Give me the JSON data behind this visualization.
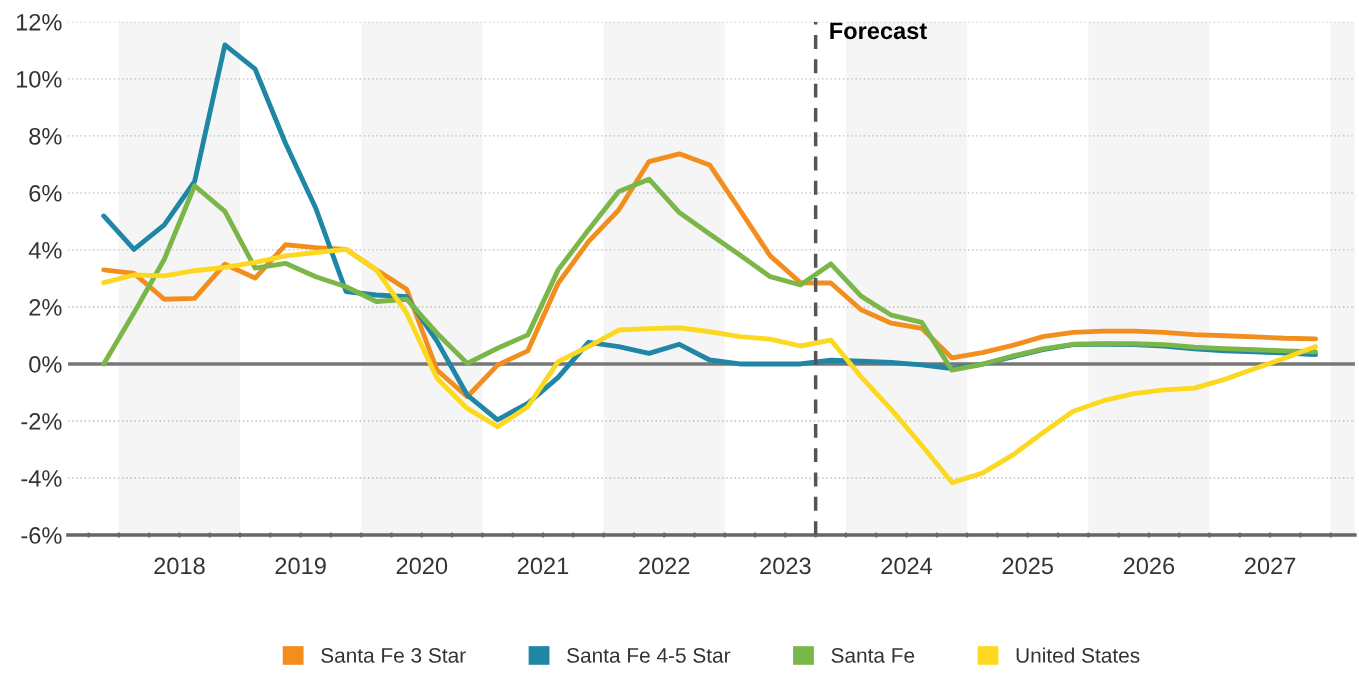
{
  "chart_data": {
    "type": "line",
    "x": [
      2017.875,
      2018.125,
      2018.375,
      2018.625,
      2018.875,
      2019.125,
      2019.375,
      2019.625,
      2019.875,
      2020.125,
      2020.375,
      2020.625,
      2020.875,
      2021.125,
      2021.375,
      2021.625,
      2021.875,
      2022.125,
      2022.375,
      2022.625,
      2022.875,
      2023.125,
      2023.375,
      2023.625,
      2023.875,
      2024.125,
      2024.375,
      2024.625,
      2024.875,
      2025.125,
      2025.375,
      2025.625,
      2025.875,
      2026.125,
      2026.375,
      2026.625,
      2026.875,
      2027.125,
      2027.375,
      2027.625,
      2027.875
    ],
    "series": [
      {
        "name": "Santa Fe 3 Star",
        "color": "#f28e1e",
        "values": [
          3.3,
          3.18,
          2.27,
          2.3,
          3.5,
          3.01,
          4.18,
          4.08,
          4.02,
          3.3,
          2.62,
          -0.21,
          -1.15,
          -0.04,
          0.46,
          2.83,
          4.29,
          5.4,
          7.1,
          7.37,
          6.98,
          5.4,
          3.79,
          2.85,
          2.84,
          1.9,
          1.43,
          1.25,
          0.21,
          0.4,
          0.65,
          0.96,
          1.11,
          1.15,
          1.15,
          1.11,
          1.03,
          0.99,
          0.95,
          0.9,
          0.88
        ]
      },
      {
        "name": "Santa Fe 4-5 Star",
        "color": "#1f86a6",
        "values": [
          5.19,
          4.02,
          4.88,
          6.4,
          11.19,
          10.34,
          7.74,
          5.46,
          2.54,
          2.42,
          2.36,
          0.8,
          -1.09,
          -1.96,
          -1.38,
          -0.47,
          0.76,
          0.61,
          0.37,
          0.69,
          0.14,
          0.0,
          0.0,
          0.0,
          0.13,
          0.1,
          0.05,
          -0.03,
          -0.16,
          -0.01,
          0.25,
          0.5,
          0.68,
          0.69,
          0.68,
          0.63,
          0.53,
          0.46,
          0.43,
          0.38,
          0.33
        ]
      },
      {
        "name": "Santa Fe",
        "color": "#7ab648",
        "values": [
          0.0,
          1.8,
          3.67,
          6.25,
          5.35,
          3.36,
          3.53,
          3.06,
          2.71,
          2.19,
          2.27,
          1.08,
          0.02,
          0.55,
          1.02,
          3.3,
          4.7,
          6.05,
          6.48,
          5.31,
          4.56,
          3.82,
          3.06,
          2.77,
          3.51,
          2.38,
          1.71,
          1.46,
          -0.22,
          -0.01,
          0.28,
          0.53,
          0.69,
          0.71,
          0.71,
          0.68,
          0.59,
          0.54,
          0.5,
          0.46,
          0.43
        ]
      },
      {
        "name": "United States",
        "color": "#fcd920",
        "values": [
          2.85,
          3.12,
          3.09,
          3.27,
          3.39,
          3.56,
          3.79,
          3.91,
          4.02,
          3.3,
          1.78,
          -0.5,
          -1.56,
          -2.2,
          -1.5,
          0.08,
          0.61,
          1.19,
          1.24,
          1.27,
          1.13,
          0.96,
          0.87,
          0.63,
          0.84,
          -0.45,
          -1.6,
          -2.85,
          -4.16,
          -3.83,
          -3.2,
          -2.41,
          -1.66,
          -1.29,
          -1.04,
          -0.91,
          -0.85,
          -0.54,
          -0.16,
          0.21,
          0.61
        ]
      }
    ],
    "xlim": [
      2017.58,
      2028.2
    ],
    "xticks": [
      {
        "value": 2017.75,
        "label": null
      },
      {
        "value": 2018,
        "label": null
      },
      {
        "value": 2018.25,
        "label": null
      },
      {
        "value": 2018.5,
        "label": "2018"
      },
      {
        "value": 2018.75,
        "label": null
      },
      {
        "value": 2019,
        "label": null
      },
      {
        "value": 2019.25,
        "label": null
      },
      {
        "value": 2019.5,
        "label": "2019"
      },
      {
        "value": 2019.75,
        "label": null
      },
      {
        "value": 2020,
        "label": null
      },
      {
        "value": 2020.25,
        "label": null
      },
      {
        "value": 2020.5,
        "label": "2020"
      },
      {
        "value": 2020.75,
        "label": null
      },
      {
        "value": 2021,
        "label": null
      },
      {
        "value": 2021.25,
        "label": null
      },
      {
        "value": 2021.5,
        "label": "2021"
      },
      {
        "value": 2021.75,
        "label": null
      },
      {
        "value": 2022,
        "label": null
      },
      {
        "value": 2022.25,
        "label": null
      },
      {
        "value": 2022.5,
        "label": "2022"
      },
      {
        "value": 2022.75,
        "label": null
      },
      {
        "value": 2023,
        "label": null
      },
      {
        "value": 2023.25,
        "label": null
      },
      {
        "value": 2023.5,
        "label": "2023"
      },
      {
        "value": 2023.75,
        "label": null
      },
      {
        "value": 2024,
        "label": null
      },
      {
        "value": 2024.25,
        "label": null
      },
      {
        "value": 2024.5,
        "label": "2024"
      },
      {
        "value": 2024.75,
        "label": null
      },
      {
        "value": 2025,
        "label": null
      },
      {
        "value": 2025.25,
        "label": null
      },
      {
        "value": 2025.5,
        "label": "2025"
      },
      {
        "value": 2025.75,
        "label": null
      },
      {
        "value": 2026,
        "label": null
      },
      {
        "value": 2026.25,
        "label": null
      },
      {
        "value": 2026.5,
        "label": "2026"
      },
      {
        "value": 2026.75,
        "label": null
      },
      {
        "value": 2027,
        "label": null
      },
      {
        "value": 2027.25,
        "label": null
      },
      {
        "value": 2027.5,
        "label": "2027"
      },
      {
        "value": 2027.75,
        "label": null
      },
      {
        "value": 2028,
        "label": null
      }
    ],
    "ylim": [
      -6,
      12
    ],
    "yticks": [
      {
        "value": -6,
        "label": "-6%"
      },
      {
        "value": -4,
        "label": "-4%"
      },
      {
        "value": -2,
        "label": "-2%"
      },
      {
        "value": 0,
        "label": "0%"
      },
      {
        "value": 2,
        "label": "2%"
      },
      {
        "value": 4,
        "label": "4%"
      },
      {
        "value": 6,
        "label": "6%"
      },
      {
        "value": 8,
        "label": "8%"
      },
      {
        "value": 10,
        "label": "10%"
      },
      {
        "value": 12,
        "label": "12%"
      }
    ],
    "grid": "y",
    "legend": "bottom",
    "marker": "none",
    "line_style": "solid",
    "bands": [
      {
        "axis": "x",
        "from": 2018,
        "to": 2019,
        "color": "#f5f5f5"
      },
      {
        "axis": "x",
        "from": 2020,
        "to": 2021,
        "color": "#f5f5f5"
      },
      {
        "axis": "x",
        "from": 2022,
        "to": 2023,
        "color": "#f5f5f5"
      },
      {
        "axis": "x",
        "from": 2024,
        "to": 2025,
        "color": "#f5f5f5"
      },
      {
        "axis": "x",
        "from": 2026,
        "to": 2027,
        "color": "#f5f5f5"
      },
      {
        "axis": "x",
        "from": 2028,
        "to": 2028.2,
        "color": "#f5f5f5"
      }
    ],
    "ref_lines": [
      {
        "axis": "y",
        "value": 0,
        "color": "#777777",
        "line_style": "solid"
      },
      {
        "axis": "x",
        "value": 2023.75,
        "label": "Forecast",
        "color": "#555555",
        "line_style": "dashed"
      }
    ]
  }
}
